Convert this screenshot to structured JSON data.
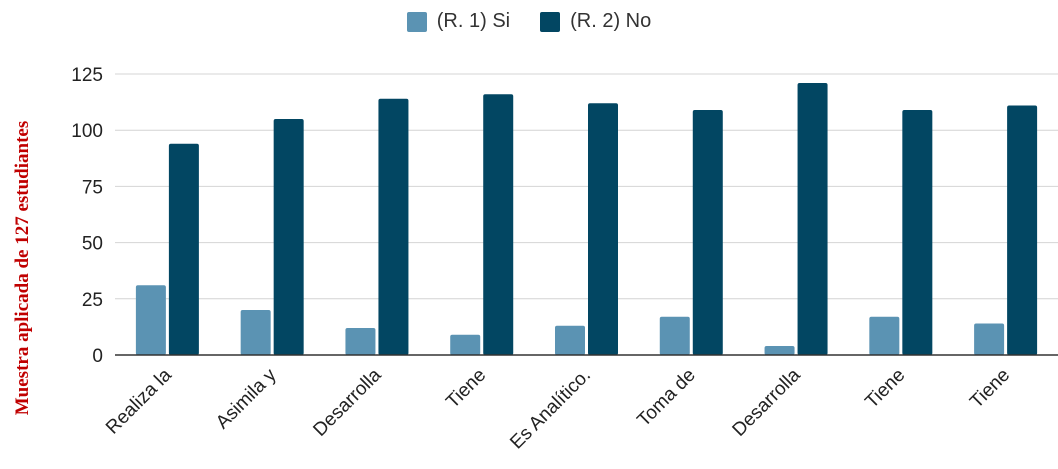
{
  "chart_data": {
    "type": "bar",
    "categories": [
      "Realiza la",
      "Asimila y",
      "Desarrolla",
      "Tiene",
      "Es Analítico.",
      "Toma de",
      "Desarrolla",
      "Tiene",
      "Tiene"
    ],
    "series": [
      {
        "name": "(R. 1) Si",
        "color": "#5b93b3",
        "values": [
          31,
          20,
          12,
          9,
          13,
          17,
          4,
          17,
          14
        ]
      },
      {
        "name": "(R. 2) No",
        "color": "#024662",
        "values": [
          94,
          105,
          114,
          116,
          112,
          109,
          121,
          109,
          111
        ]
      }
    ],
    "ylabel": "Muestra aplicada de 127 estudiantes",
    "ylim": [
      0,
      125
    ],
    "yticks": [
      0,
      25,
      50,
      75,
      100,
      125
    ],
    "grid": true,
    "legend": "top-center"
  }
}
